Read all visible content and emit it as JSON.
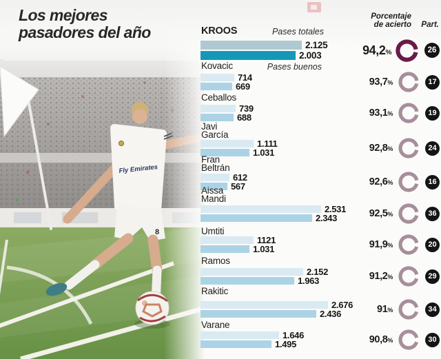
{
  "title": {
    "line1": "Los mejores",
    "line2": "pasadores del año"
  },
  "headers": {
    "accuracy_line1": "Porcentaje",
    "accuracy_line2": "de acierto",
    "participation": "Part."
  },
  "labels": {
    "percent_symbol": "%"
  },
  "photo": {
    "jersey_sponsor": "Fly Emirates",
    "shirt_number": "8"
  },
  "colors": {
    "bar_total_light": "#d9eaf2",
    "bar_good_light": "#abd3e5",
    "bar_total_highlight": "#aec9d2",
    "bar_good_highlight": "#1598b6",
    "ring_highlight": "#681c48",
    "ring_normal": "#a78e9b",
    "badge": "#141414",
    "text": "#1d1d1b",
    "grass": "#7ba356"
  },
  "chart_data": {
    "type": "bar",
    "title": "Los mejores pasadores del año",
    "orientation": "horizontal",
    "legend_position": "inline-top",
    "categories": [
      "Kroos",
      "Kovacic",
      "Ceballos",
      "Javi García",
      "Fran Beltrán",
      "Aissa Mandi",
      "Umtiti",
      "Ramos",
      "Rakitic",
      "Varane"
    ],
    "series": [
      {
        "name": "Pases totales",
        "values": [
          2125,
          714,
          739,
          1111,
          612,
          2531,
          1121,
          2152,
          2676,
          1646
        ]
      },
      {
        "name": "Pases buenos",
        "values": [
          2003,
          669,
          688,
          1031,
          567,
          2343,
          1031,
          1963,
          2436,
          1495
        ]
      }
    ],
    "accuracy_pct": [
      94.2,
      93.7,
      93.1,
      92.8,
      92.6,
      92.5,
      91.9,
      91.2,
      91,
      90.8
    ],
    "participations": [
      26,
      17,
      19,
      24,
      16,
      36,
      20,
      29,
      34,
      30
    ],
    "max_value": 2676,
    "rows": [
      {
        "name_l1": "KROOS",
        "name_l2": "",
        "total": "2.125",
        "total_n": 2125,
        "good": "2.003",
        "good_n": 2003,
        "pct": "94,2",
        "pct_n": 94.2,
        "part": "26",
        "highlight": true
      },
      {
        "name_l1": "Kovacic",
        "name_l2": "",
        "total": "714",
        "total_n": 714,
        "good": "669",
        "good_n": 669,
        "pct": "93,7",
        "pct_n": 93.7,
        "part": "17",
        "highlight": false
      },
      {
        "name_l1": "Ceballos",
        "name_l2": "",
        "total": "739",
        "total_n": 739,
        "good": "688",
        "good_n": 688,
        "pct": "93,1",
        "pct_n": 93.1,
        "part": "19",
        "highlight": false
      },
      {
        "name_l1": "Javi",
        "name_l2": "García",
        "total": "1.111",
        "total_n": 1111,
        "good": "1.031",
        "good_n": 1031,
        "pct": "92,8",
        "pct_n": 92.8,
        "part": "24",
        "highlight": false
      },
      {
        "name_l1": "Fran",
        "name_l2": "Beltrán",
        "total": "612",
        "total_n": 612,
        "good": "567",
        "good_n": 567,
        "pct": "92,6",
        "pct_n": 92.6,
        "part": "16",
        "highlight": false
      },
      {
        "name_l1": "Aissa",
        "name_l2": "Mandi",
        "total": "2.531",
        "total_n": 2531,
        "good": "2.343",
        "good_n": 2343,
        "pct": "92,5",
        "pct_n": 92.5,
        "part": "36",
        "highlight": false
      },
      {
        "name_l1": "Umtiti",
        "name_l2": "",
        "total": "1121",
        "total_n": 1121,
        "good": "1.031",
        "good_n": 1031,
        "pct": "91,9",
        "pct_n": 91.9,
        "part": "20",
        "highlight": false
      },
      {
        "name_l1": "Ramos",
        "name_l2": "",
        "total": "2.152",
        "total_n": 2152,
        "good": "1.963",
        "good_n": 1963,
        "pct": "91,2",
        "pct_n": 91.2,
        "part": "29",
        "highlight": false
      },
      {
        "name_l1": "Rakitic",
        "name_l2": "",
        "total": "2.676",
        "total_n": 2676,
        "good": "2.436",
        "good_n": 2436,
        "pct": "91",
        "pct_n": 91.0,
        "part": "34",
        "highlight": false
      },
      {
        "name_l1": "Varane",
        "name_l2": "",
        "total": "1.646",
        "total_n": 1646,
        "good": "1.495",
        "good_n": 1495,
        "pct": "90,8",
        "pct_n": 90.8,
        "part": "30",
        "highlight": false
      }
    ]
  }
}
